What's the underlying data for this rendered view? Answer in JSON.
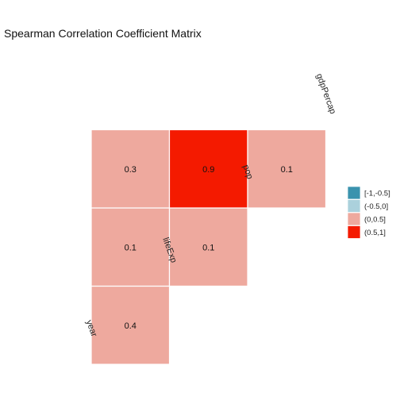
{
  "chart_data": {
    "type": "heatmap",
    "title": "Spearman Correlation Coefficient Matrix",
    "variables": [
      "year",
      "lifeExp",
      "pop",
      "gdpPercap"
    ],
    "cells": [
      {
        "row": "lifeExp",
        "col": "year",
        "value": 0.4,
        "label": "0.4",
        "bin": 2
      },
      {
        "row": "pop",
        "col": "year",
        "value": 0.1,
        "label": "0.1",
        "bin": 2
      },
      {
        "row": "pop",
        "col": "lifeExp",
        "value": 0.1,
        "label": "0.1",
        "bin": 2
      },
      {
        "row": "gdpPercap",
        "col": "year",
        "value": 0.3,
        "label": "0.3",
        "bin": 2
      },
      {
        "row": "gdpPercap",
        "col": "lifeExp",
        "value": 0.9,
        "label": "0.9",
        "bin": 3
      },
      {
        "row": "gdpPercap",
        "col": "pop",
        "value": 0.1,
        "label": "0.1",
        "bin": 2
      }
    ],
    "legend": {
      "position": "right",
      "entries": [
        {
          "label": "[-1,-0.5]",
          "color": "#3A93AE"
        },
        {
          "label": "(-0.5,0]",
          "color": "#ABD1DC"
        },
        {
          "label": "(0,0.5]",
          "color": "#EEA99E"
        },
        {
          "label": "(0.5,1]",
          "color": "#F41A00"
        }
      ]
    }
  }
}
